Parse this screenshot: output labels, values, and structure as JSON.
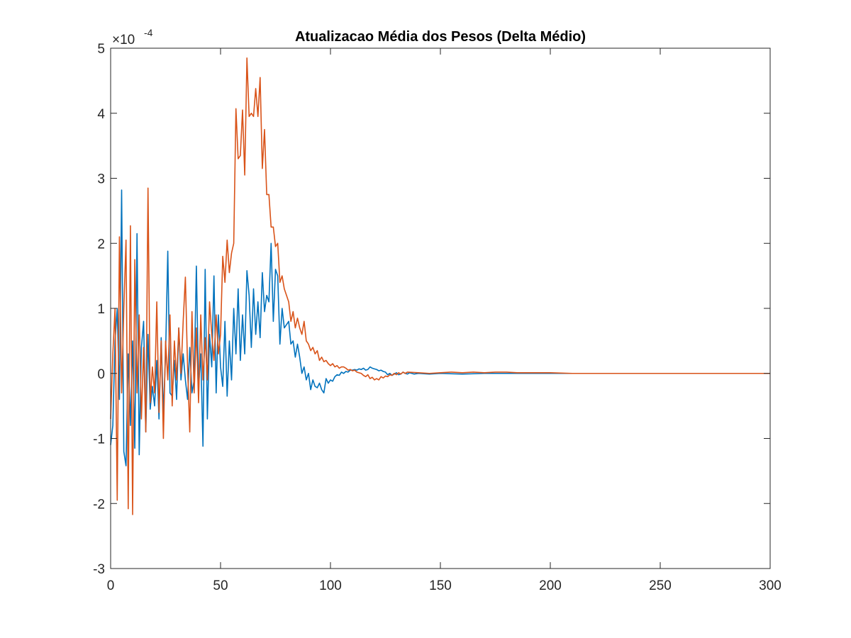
{
  "chart_data": {
    "type": "line",
    "title": "Atualizacao Média dos Pesos (Delta Médio)",
    "xlabel": "",
    "ylabel": "",
    "xlim": [
      0,
      300
    ],
    "ylim": [
      -3,
      5
    ],
    "y_multiplier_base": "×10",
    "y_multiplier_exponent": "-4",
    "x_ticks": [
      0,
      50,
      100,
      150,
      200,
      250,
      300
    ],
    "y_ticks": [
      -3,
      -2,
      -1,
      0,
      1,
      2,
      3,
      4,
      5
    ],
    "grid": false,
    "legend": "none",
    "series": [
      {
        "color": "#0072BD",
        "points": [
          [
            0,
            -1.1
          ],
          [
            1,
            -0.8
          ],
          [
            2,
            0.5
          ],
          [
            3,
            1.0
          ],
          [
            4,
            -0.4
          ],
          [
            5,
            2.82
          ],
          [
            6,
            -1.2
          ],
          [
            7,
            -1.42
          ],
          [
            8,
            0.3
          ],
          [
            9,
            -0.8
          ],
          [
            10,
            0.5
          ],
          [
            11,
            -1.15
          ],
          [
            12,
            2.15
          ],
          [
            13,
            -1.25
          ],
          [
            14,
            0.4
          ],
          [
            15,
            0.8
          ],
          [
            16,
            -0.9
          ],
          [
            17,
            0.6
          ],
          [
            18,
            -0.55
          ],
          [
            19,
            -0.2
          ],
          [
            20,
            -0.5
          ],
          [
            21,
            0.2
          ],
          [
            22,
            -0.7
          ],
          [
            23,
            0.55
          ],
          [
            24,
            -0.6
          ],
          [
            25,
            0.3
          ],
          [
            26,
            1.88
          ],
          [
            27,
            -0.3
          ],
          [
            28,
            -0.35
          ],
          [
            29,
            0.2
          ],
          [
            30,
            -0.4
          ],
          [
            31,
            0.7
          ],
          [
            32,
            -0.1
          ],
          [
            33,
            0.3
          ],
          [
            34,
            -0.1
          ],
          [
            35,
            -0.4
          ],
          [
            36,
            0.4
          ],
          [
            37,
            -0.3
          ],
          [
            38,
            -0.1
          ],
          [
            39,
            1.65
          ],
          [
            40,
            -0.2
          ],
          [
            41,
            0.3
          ],
          [
            42,
            -1.12
          ],
          [
            43,
            1.6
          ],
          [
            44,
            -0.7
          ],
          [
            45,
            0.6
          ],
          [
            46,
            0.1
          ],
          [
            47,
            1.5
          ],
          [
            48,
            -0.3
          ],
          [
            49,
            0.9
          ],
          [
            50,
            0.1
          ],
          [
            51,
            -0.2
          ],
          [
            52,
            0.8
          ],
          [
            53,
            -0.35
          ],
          [
            54,
            0.5
          ],
          [
            55,
            -0.1
          ],
          [
            56,
            1.0
          ],
          [
            57,
            0.3
          ],
          [
            58,
            1.3
          ],
          [
            59,
            0.2
          ],
          [
            60,
            0.9
          ],
          [
            61,
            0.3
          ],
          [
            62,
            1.58
          ],
          [
            63,
            1.2
          ],
          [
            64,
            0.4
          ],
          [
            65,
            1.3
          ],
          [
            66,
            0.6
          ],
          [
            67,
            1.1
          ],
          [
            68,
            0.55
          ],
          [
            69,
            1.55
          ],
          [
            70,
            0.95
          ],
          [
            71,
            1.2
          ],
          [
            72,
            1.1
          ],
          [
            73,
            2.0
          ],
          [
            74,
            0.8
          ],
          [
            75,
            1.6
          ],
          [
            76,
            1.5
          ],
          [
            77,
            0.45
          ],
          [
            78,
            1.0
          ],
          [
            79,
            0.7
          ],
          [
            80,
            0.75
          ],
          [
            81,
            0.8
          ],
          [
            82,
            0.45
          ],
          [
            83,
            0.5
          ],
          [
            84,
            0.25
          ],
          [
            85,
            0.45
          ],
          [
            86,
            0.25
          ],
          [
            87,
            0.0
          ],
          [
            88,
            0.1
          ],
          [
            89,
            -0.1
          ],
          [
            90,
            0.0
          ],
          [
            91,
            -0.25
          ],
          [
            92,
            -0.1
          ],
          [
            93,
            -0.2
          ],
          [
            94,
            -0.22
          ],
          [
            95,
            -0.15
          ],
          [
            96,
            -0.25
          ],
          [
            97,
            -0.3
          ],
          [
            98,
            -0.08
          ],
          [
            99,
            -0.15
          ],
          [
            100,
            -0.1
          ],
          [
            101,
            -0.12
          ],
          [
            102,
            -0.05
          ],
          [
            103,
            -0.02
          ],
          [
            104,
            -0.03
          ],
          [
            105,
            0.02
          ],
          [
            106,
            0.0
          ],
          [
            107,
            0.03
          ],
          [
            108,
            0.02
          ],
          [
            109,
            0.05
          ],
          [
            110,
            0.05
          ],
          [
            111,
            0.06
          ],
          [
            112,
            0.05
          ],
          [
            113,
            0.07
          ],
          [
            114,
            0.06
          ],
          [
            115,
            0.08
          ],
          [
            116,
            0.05
          ],
          [
            117,
            0.06
          ],
          [
            118,
            0.1
          ],
          [
            119,
            0.08
          ],
          [
            120,
            0.07
          ],
          [
            121,
            0.06
          ],
          [
            122,
            0.04
          ],
          [
            123,
            0.05
          ],
          [
            124,
            0.03
          ],
          [
            125,
            0.02
          ],
          [
            126,
            -0.02
          ],
          [
            127,
            0.0
          ],
          [
            128,
            -0.03
          ],
          [
            129,
            -0.01
          ],
          [
            130,
            0.01
          ],
          [
            131,
            -0.02
          ],
          [
            132,
            -0.01
          ],
          [
            133,
            0.02
          ],
          [
            134,
            0.0
          ],
          [
            135,
            -0.01
          ],
          [
            136,
            0.01
          ],
          [
            138,
            -0.01
          ],
          [
            140,
            0.0
          ],
          [
            145,
            -0.01
          ],
          [
            150,
            0.0
          ],
          [
            160,
            -0.01
          ],
          [
            170,
            0.0
          ],
          [
            180,
            0.0
          ],
          [
            200,
            0.0
          ],
          [
            250,
            0.0
          ],
          [
            300,
            0.0
          ]
        ]
      },
      {
        "color": "#D95319",
        "points": [
          [
            0,
            -0.7
          ],
          [
            1,
            0.3
          ],
          [
            2,
            1.0
          ],
          [
            3,
            -1.95
          ],
          [
            4,
            2.1
          ],
          [
            5,
            -0.3
          ],
          [
            6,
            1.0
          ],
          [
            7,
            2.05
          ],
          [
            8,
            -2.08
          ],
          [
            9,
            2.27
          ],
          [
            10,
            -2.17
          ],
          [
            11,
            1.75
          ],
          [
            12,
            -0.3
          ],
          [
            13,
            0.9
          ],
          [
            14,
            -0.7
          ],
          [
            15,
            0.4
          ],
          [
            16,
            -0.9
          ],
          [
            17,
            2.85
          ],
          [
            18,
            -0.45
          ],
          [
            19,
            0.1
          ],
          [
            20,
            -0.3
          ],
          [
            21,
            1.1
          ],
          [
            22,
            -0.6
          ],
          [
            23,
            0.5
          ],
          [
            24,
            -1.0
          ],
          [
            25,
            0.5
          ],
          [
            26,
            -0.1
          ],
          [
            27,
            0.9
          ],
          [
            28,
            -0.5
          ],
          [
            29,
            0.5
          ],
          [
            30,
            -0.1
          ],
          [
            31,
            0.7
          ],
          [
            32,
            0.0
          ],
          [
            33,
            0.8
          ],
          [
            34,
            1.48
          ],
          [
            35,
            0.1
          ],
          [
            36,
            -0.9
          ],
          [
            37,
            0.95
          ],
          [
            38,
            -0.3
          ],
          [
            39,
            0.7
          ],
          [
            40,
            -0.45
          ],
          [
            41,
            0.9
          ],
          [
            42,
            -0.1
          ],
          [
            43,
            0.55
          ],
          [
            44,
            -0.1
          ],
          [
            45,
            1.1
          ],
          [
            46,
            0.6
          ],
          [
            47,
            0.2
          ],
          [
            48,
            0.9
          ],
          [
            49,
            0.3
          ],
          [
            50,
            0.6
          ],
          [
            51,
            1.8
          ],
          [
            52,
            1.4
          ],
          [
            53,
            2.05
          ],
          [
            54,
            1.55
          ],
          [
            55,
            1.85
          ],
          [
            56,
            2.0
          ],
          [
            57,
            4.07
          ],
          [
            58,
            3.3
          ],
          [
            59,
            3.35
          ],
          [
            60,
            4.05
          ],
          [
            61,
            3.05
          ],
          [
            62,
            4.85
          ],
          [
            63,
            3.95
          ],
          [
            64,
            4.0
          ],
          [
            65,
            3.95
          ],
          [
            66,
            4.38
          ],
          [
            67,
            3.95
          ],
          [
            68,
            4.55
          ],
          [
            69,
            3.15
          ],
          [
            70,
            3.75
          ],
          [
            71,
            2.75
          ],
          [
            72,
            2.75
          ],
          [
            73,
            2.25
          ],
          [
            74,
            2.25
          ],
          [
            75,
            1.95
          ],
          [
            76,
            2.0
          ],
          [
            77,
            1.4
          ],
          [
            78,
            1.5
          ],
          [
            79,
            1.3
          ],
          [
            80,
            1.2
          ],
          [
            81,
            1.1
          ],
          [
            82,
            0.8
          ],
          [
            83,
            0.95
          ],
          [
            84,
            0.7
          ],
          [
            85,
            0.85
          ],
          [
            86,
            0.7
          ],
          [
            87,
            0.6
          ],
          [
            88,
            0.8
          ],
          [
            89,
            0.5
          ],
          [
            90,
            0.45
          ],
          [
            91,
            0.35
          ],
          [
            92,
            0.4
          ],
          [
            93,
            0.3
          ],
          [
            94,
            0.35
          ],
          [
            95,
            0.2
          ],
          [
            96,
            0.25
          ],
          [
            97,
            0.18
          ],
          [
            98,
            0.2
          ],
          [
            99,
            0.15
          ],
          [
            100,
            0.12
          ],
          [
            101,
            0.15
          ],
          [
            102,
            0.1
          ],
          [
            103,
            0.12
          ],
          [
            104,
            0.08
          ],
          [
            105,
            0.1
          ],
          [
            106,
            0.1
          ],
          [
            107,
            0.08
          ],
          [
            108,
            0.05
          ],
          [
            109,
            0.06
          ],
          [
            110,
            0.04
          ],
          [
            111,
            0.05
          ],
          [
            112,
            0.02
          ],
          [
            113,
            0.01
          ],
          [
            114,
            0.0
          ],
          [
            115,
            -0.03
          ],
          [
            116,
            -0.05
          ],
          [
            117,
            -0.02
          ],
          [
            118,
            -0.08
          ],
          [
            119,
            -0.06
          ],
          [
            120,
            -0.1
          ],
          [
            121,
            -0.08
          ],
          [
            122,
            -0.1
          ],
          [
            123,
            -0.05
          ],
          [
            124,
            -0.07
          ],
          [
            125,
            -0.04
          ],
          [
            126,
            -0.05
          ],
          [
            127,
            -0.02
          ],
          [
            128,
            -0.03
          ],
          [
            129,
            0.0
          ],
          [
            130,
            -0.02
          ],
          [
            131,
            0.01
          ],
          [
            132,
            -0.01
          ],
          [
            133,
            0.02
          ],
          [
            134,
            0.0
          ],
          [
            135,
            0.02
          ],
          [
            140,
            0.01
          ],
          [
            145,
            0.0
          ],
          [
            150,
            0.01
          ],
          [
            155,
            0.02
          ],
          [
            160,
            0.01
          ],
          [
            165,
            0.02
          ],
          [
            170,
            0.01
          ],
          [
            175,
            0.02
          ],
          [
            180,
            0.02
          ],
          [
            185,
            0.01
          ],
          [
            190,
            0.01
          ],
          [
            200,
            0.01
          ],
          [
            210,
            0.0
          ],
          [
            250,
            0.0
          ],
          [
            300,
            0.0
          ]
        ]
      }
    ]
  }
}
